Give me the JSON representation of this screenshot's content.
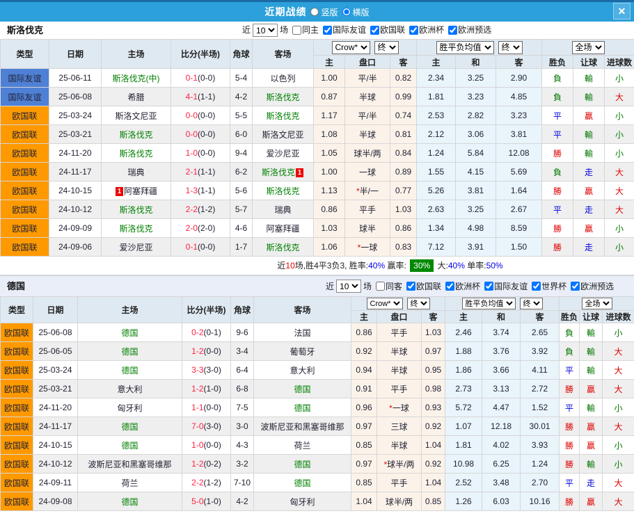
{
  "titlebar": {
    "title": "近期战绩",
    "radio_vertical": "竖版",
    "radio_horizontal": "横版",
    "close_glyph": "✕"
  },
  "table_headers": {
    "col_type": "类型",
    "col_date": "日期",
    "col_home": "主场",
    "col_score": "比分(半场)",
    "col_corner": "角球",
    "col_away": "客场",
    "col_h": "主",
    "col_handicap": "盘口",
    "col_a": "客",
    "col_avg_h": "主",
    "col_avg_d": "和",
    "col_avg_a": "客",
    "col_result": "胜负",
    "col_handicap_result": "让球",
    "col_goals": "进球数",
    "select_crow": "Crow*",
    "select_final1": "终",
    "select_avg": "胜平负均值",
    "select_final2": "终",
    "select_fullmatch": "全场"
  },
  "filter_labels": {
    "near": "近",
    "count": "10",
    "games": "场"
  },
  "result_color_map": {
    "勝": "red",
    "平": "blue",
    "負": "green",
    "贏": "red",
    "走": "blue",
    "輸": "green",
    "大": "red",
    "小": "green"
  },
  "colors": {
    "titlebar_blue": "#2ba0da",
    "badge_blue": "#4e80d5",
    "badge_orange": "#ff9900",
    "focus_team_green": "#008000",
    "score_red": "#ff2244",
    "win_red": "#dd0000",
    "draw_blue": "#0000dd",
    "loss_green": "#007700",
    "summary_badge_green": "#008800"
  },
  "sections": [
    {
      "team": "斯洛伐克",
      "same_label": "同主",
      "same_checked": false,
      "leagues": [
        "国际友谊",
        "欧国联",
        "欧洲杯",
        "欧洲预选"
      ],
      "rows": [
        {
          "type": "国际友谊",
          "type_color": "blue",
          "date": "25-06-11",
          "home": "斯洛伐克(中)",
          "home_focus": true,
          "home_rc": "",
          "away": "以色列",
          "away_focus": false,
          "away_rc": "",
          "score": "0-1",
          "half": "(0-0)",
          "corner": "5-4",
          "w": "1.00",
          "hcap": "平/半",
          "star": false,
          "l": "0.82",
          "avg_h": "2.34",
          "avg_d": "3.25",
          "avg_a": "2.90",
          "res": "負",
          "hres": "輸",
          "goals": "小"
        },
        {
          "type": "国际友谊",
          "type_color": "blue",
          "date": "25-06-08",
          "home": "希腊",
          "home_focus": false,
          "home_rc": "",
          "away": "斯洛伐克",
          "away_focus": true,
          "away_rc": "",
          "score": "4-1",
          "half": "(1-1)",
          "corner": "4-2",
          "w": "0.87",
          "hcap": "半球",
          "star": false,
          "l": "0.99",
          "avg_h": "1.81",
          "avg_d": "3.23",
          "avg_a": "4.85",
          "res": "負",
          "hres": "輸",
          "goals": "大"
        },
        {
          "type": "欧国联",
          "type_color": "orange",
          "date": "25-03-24",
          "home": "斯洛文尼亚",
          "home_focus": false,
          "home_rc": "",
          "away": "斯洛伐克",
          "away_focus": true,
          "away_rc": "",
          "score": "0-0",
          "half": "(0-0)",
          "corner": "5-5",
          "w": "1.17",
          "hcap": "平/半",
          "star": false,
          "l": "0.74",
          "avg_h": "2.53",
          "avg_d": "2.82",
          "avg_a": "3.23",
          "res": "平",
          "hres": "贏",
          "goals": "小"
        },
        {
          "type": "欧国联",
          "type_color": "orange",
          "date": "25-03-21",
          "home": "斯洛伐克",
          "home_focus": true,
          "home_rc": "",
          "away": "斯洛文尼亚",
          "away_focus": false,
          "away_rc": "",
          "score": "0-0",
          "half": "(0-0)",
          "corner": "6-0",
          "w": "1.08",
          "hcap": "半球",
          "star": false,
          "l": "0.81",
          "avg_h": "2.12",
          "avg_d": "3.06",
          "avg_a": "3.81",
          "res": "平",
          "hres": "輸",
          "goals": "小"
        },
        {
          "type": "欧国联",
          "type_color": "orange",
          "date": "24-11-20",
          "home": "斯洛伐克",
          "home_focus": true,
          "home_rc": "",
          "away": "爱沙尼亚",
          "away_focus": false,
          "away_rc": "",
          "score": "1-0",
          "half": "(0-0)",
          "corner": "9-4",
          "w": "1.05",
          "hcap": "球半/两",
          "star": false,
          "l": "0.84",
          "avg_h": "1.24",
          "avg_d": "5.84",
          "avg_a": "12.08",
          "res": "勝",
          "hres": "輸",
          "goals": "小"
        },
        {
          "type": "欧国联",
          "type_color": "orange",
          "date": "24-11-17",
          "home": "瑞典",
          "home_focus": false,
          "home_rc": "",
          "away": "斯洛伐克",
          "away_focus": true,
          "away_rc": "1",
          "away_rc_pos": "after",
          "score": "2-1",
          "half": "(1-1)",
          "corner": "6-2",
          "w": "1.00",
          "hcap": "一球",
          "star": false,
          "l": "0.89",
          "avg_h": "1.55",
          "avg_d": "4.15",
          "avg_a": "5.69",
          "res": "負",
          "hres": "走",
          "goals": "大"
        },
        {
          "type": "欧国联",
          "type_color": "orange",
          "date": "24-10-15",
          "home": "阿塞拜疆",
          "home_focus": false,
          "home_rc": "1",
          "home_rc_pos": "before",
          "away": "斯洛伐克",
          "away_focus": true,
          "away_rc": "",
          "score": "1-3",
          "half": "(1-1)",
          "corner": "5-6",
          "w": "1.13",
          "hcap": "半/一",
          "star": true,
          "l": "0.77",
          "avg_h": "5.26",
          "avg_d": "3.81",
          "avg_a": "1.64",
          "res": "勝",
          "hres": "贏",
          "goals": "大"
        },
        {
          "type": "欧国联",
          "type_color": "orange",
          "date": "24-10-12",
          "home": "斯洛伐克",
          "home_focus": true,
          "home_rc": "",
          "away": "瑞典",
          "away_focus": false,
          "away_rc": "",
          "score": "2-2",
          "half": "(1-2)",
          "corner": "5-7",
          "w": "0.86",
          "hcap": "平手",
          "star": false,
          "l": "1.03",
          "avg_h": "2.63",
          "avg_d": "3.25",
          "avg_a": "2.67",
          "res": "平",
          "hres": "走",
          "goals": "大"
        },
        {
          "type": "欧国联",
          "type_color": "orange",
          "date": "24-09-09",
          "home": "斯洛伐克",
          "home_focus": true,
          "home_rc": "",
          "away": "阿塞拜疆",
          "away_focus": false,
          "away_rc": "",
          "score": "2-0",
          "half": "(2-0)",
          "corner": "4-6",
          "w": "1.03",
          "hcap": "球半",
          "star": false,
          "l": "0.86",
          "avg_h": "1.34",
          "avg_d": "4.98",
          "avg_a": "8.59",
          "res": "勝",
          "hres": "贏",
          "goals": "小"
        },
        {
          "type": "欧国联",
          "type_color": "orange",
          "date": "24-09-06",
          "home": "爱沙尼亚",
          "home_focus": false,
          "home_rc": "",
          "away": "斯洛伐克",
          "away_focus": true,
          "away_rc": "",
          "score": "0-1",
          "half": "(0-0)",
          "corner": "1-7",
          "w": "1.06",
          "hcap": "一球",
          "star": true,
          "l": "0.83",
          "avg_h": "7.12",
          "avg_d": "3.91",
          "avg_a": "1.50",
          "res": "勝",
          "hres": "走",
          "goals": "小"
        }
      ],
      "summary": [
        {
          "t": "近",
          "c": "k"
        },
        {
          "t": "10",
          "c": "r"
        },
        {
          "t": "场,胜4平3负3, 胜率:",
          "c": "k"
        },
        {
          "t": "40%",
          "c": "b"
        },
        {
          "t": " 赢率: ",
          "c": "k"
        },
        {
          "t": "30%",
          "c": "badge"
        },
        {
          "t": " 大:",
          "c": "k"
        },
        {
          "t": "40%",
          "c": "b"
        },
        {
          "t": " 单率:",
          "c": "k"
        },
        {
          "t": "50%",
          "c": "b"
        }
      ]
    },
    {
      "team": "德国",
      "same_label": "同客",
      "same_checked": false,
      "leagues": [
        "欧国联",
        "欧洲杯",
        "国际友谊",
        "世界杯",
        "欧洲预选"
      ],
      "rows": [
        {
          "type": "欧国联",
          "type_color": "orange",
          "date": "25-06-08",
          "home": "德国",
          "home_focus": true,
          "home_rc": "",
          "away": "法国",
          "away_focus": false,
          "away_rc": "",
          "score": "0-2",
          "half": "(0-1)",
          "corner": "9-6",
          "w": "0.86",
          "hcap": "平手",
          "star": false,
          "l": "1.03",
          "avg_h": "2.46",
          "avg_d": "3.74",
          "avg_a": "2.65",
          "res": "負",
          "hres": "輸",
          "goals": "小"
        },
        {
          "type": "欧国联",
          "type_color": "orange",
          "date": "25-06-05",
          "home": "德国",
          "home_focus": true,
          "home_rc": "",
          "away": "葡萄牙",
          "away_focus": false,
          "away_rc": "",
          "score": "1-2",
          "half": "(0-0)",
          "corner": "3-4",
          "w": "0.92",
          "hcap": "半球",
          "star": false,
          "l": "0.97",
          "avg_h": "1.88",
          "avg_d": "3.76",
          "avg_a": "3.92",
          "res": "負",
          "hres": "輸",
          "goals": "大"
        },
        {
          "type": "欧国联",
          "type_color": "orange",
          "date": "25-03-24",
          "home": "德国",
          "home_focus": true,
          "home_rc": "",
          "away": "意大利",
          "away_focus": false,
          "away_rc": "",
          "score": "3-3",
          "half": "(3-0)",
          "corner": "6-4",
          "w": "0.94",
          "hcap": "半球",
          "star": false,
          "l": "0.95",
          "avg_h": "1.86",
          "avg_d": "3.66",
          "avg_a": "4.11",
          "res": "平",
          "hres": "輸",
          "goals": "大"
        },
        {
          "type": "欧国联",
          "type_color": "orange",
          "date": "25-03-21",
          "home": "意大利",
          "home_focus": false,
          "home_rc": "",
          "away": "德国",
          "away_focus": true,
          "away_rc": "",
          "score": "1-2",
          "half": "(1-0)",
          "corner": "6-8",
          "w": "0.91",
          "hcap": "平手",
          "star": false,
          "l": "0.98",
          "avg_h": "2.73",
          "avg_d": "3.13",
          "avg_a": "2.72",
          "res": "勝",
          "hres": "贏",
          "goals": "大"
        },
        {
          "type": "欧国联",
          "type_color": "orange",
          "date": "24-11-20",
          "home": "匈牙利",
          "home_focus": false,
          "home_rc": "",
          "away": "德国",
          "away_focus": true,
          "away_rc": "",
          "score": "1-1",
          "half": "(0-0)",
          "corner": "7-5",
          "w": "0.96",
          "hcap": "一球",
          "star": true,
          "l": "0.93",
          "avg_h": "5.72",
          "avg_d": "4.47",
          "avg_a": "1.52",
          "res": "平",
          "hres": "輸",
          "goals": "小"
        },
        {
          "type": "欧国联",
          "type_color": "orange",
          "date": "24-11-17",
          "home": "德国",
          "home_focus": true,
          "home_rc": "",
          "away": "波斯尼亚和黑塞哥维那",
          "away_focus": false,
          "away_rc": "",
          "score": "7-0",
          "half": "(3-0)",
          "corner": "3-0",
          "w": "0.97",
          "hcap": "三球",
          "star": false,
          "l": "0.92",
          "avg_h": "1.07",
          "avg_d": "12.18",
          "avg_a": "30.01",
          "res": "勝",
          "hres": "贏",
          "goals": "大"
        },
        {
          "type": "欧国联",
          "type_color": "orange",
          "date": "24-10-15",
          "home": "德国",
          "home_focus": true,
          "home_rc": "",
          "away": "荷兰",
          "away_focus": false,
          "away_rc": "",
          "score": "1-0",
          "half": "(0-0)",
          "corner": "4-3",
          "w": "0.85",
          "hcap": "半球",
          "star": false,
          "l": "1.04",
          "avg_h": "1.81",
          "avg_d": "4.02",
          "avg_a": "3.93",
          "res": "勝",
          "hres": "贏",
          "goals": "小"
        },
        {
          "type": "欧国联",
          "type_color": "orange",
          "date": "24-10-12",
          "home": "波斯尼亚和黑塞哥维那",
          "home_focus": false,
          "home_rc": "",
          "away": "德国",
          "away_focus": true,
          "away_rc": "",
          "score": "1-2",
          "half": "(0-2)",
          "corner": "3-2",
          "w": "0.97",
          "hcap": "球半/两",
          "star": true,
          "l": "0.92",
          "avg_h": "10.98",
          "avg_d": "6.25",
          "avg_a": "1.24",
          "res": "勝",
          "hres": "輸",
          "goals": "小"
        },
        {
          "type": "欧国联",
          "type_color": "orange",
          "date": "24-09-11",
          "home": "荷兰",
          "home_focus": false,
          "home_rc": "",
          "away": "德国",
          "away_focus": true,
          "away_rc": "",
          "score": "2-2",
          "half": "(1-2)",
          "corner": "7-10",
          "w": "0.85",
          "hcap": "平手",
          "star": false,
          "l": "1.04",
          "avg_h": "2.52",
          "avg_d": "3.48",
          "avg_a": "2.70",
          "res": "平",
          "hres": "走",
          "goals": "大"
        },
        {
          "type": "欧国联",
          "type_color": "orange",
          "date": "24-09-08",
          "home": "德国",
          "home_focus": true,
          "home_rc": "",
          "away": "匈牙利",
          "away_focus": false,
          "away_rc": "",
          "score": "5-0",
          "half": "(1-0)",
          "corner": "4-2",
          "w": "1.04",
          "hcap": "球半/两",
          "star": false,
          "l": "0.85",
          "avg_h": "1.26",
          "avg_d": "6.03",
          "avg_a": "10.16",
          "res": "勝",
          "hres": "贏",
          "goals": "大"
        }
      ]
    }
  ]
}
